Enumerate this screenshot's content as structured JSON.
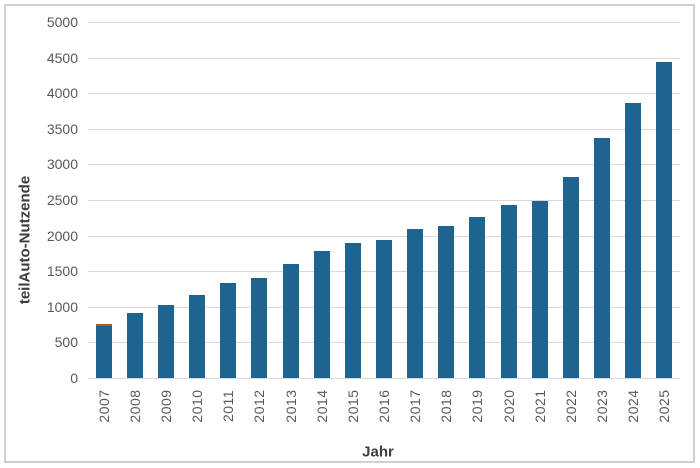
{
  "chart_data": {
    "type": "bar",
    "title": "",
    "xlabel": "Jahr",
    "ylabel": "teilAuto-Nutzende",
    "categories": [
      "2007",
      "2008",
      "2009",
      "2010",
      "2011",
      "2012",
      "2013",
      "2014",
      "2015",
      "2016",
      "2017",
      "2018",
      "2019",
      "2020",
      "2021",
      "2022",
      "2023",
      "2024",
      "2025"
    ],
    "values": [
      760,
      910,
      1020,
      1160,
      1330,
      1400,
      1600,
      1790,
      1890,
      1940,
      2090,
      2140,
      2260,
      2430,
      2480,
      2830,
      3370,
      3860,
      4440
    ],
    "ylim": [
      0,
      5000
    ],
    "ytick_step": 500,
    "yticks": [
      0,
      500,
      1000,
      1500,
      2000,
      2500,
      3000,
      3500,
      4000,
      4500,
      5000
    ],
    "grid": true,
    "legend": "none",
    "bar_color": "#1e6491",
    "first_bar_cap_color": "#b4591c",
    "gridline_color": "#d9d9d9",
    "tick_label_color": "#595959",
    "axis_title_color": "#3d3d3d",
    "frame_border_color": "#ccd1d5",
    "x_labels_rotation_degrees": -90
  }
}
